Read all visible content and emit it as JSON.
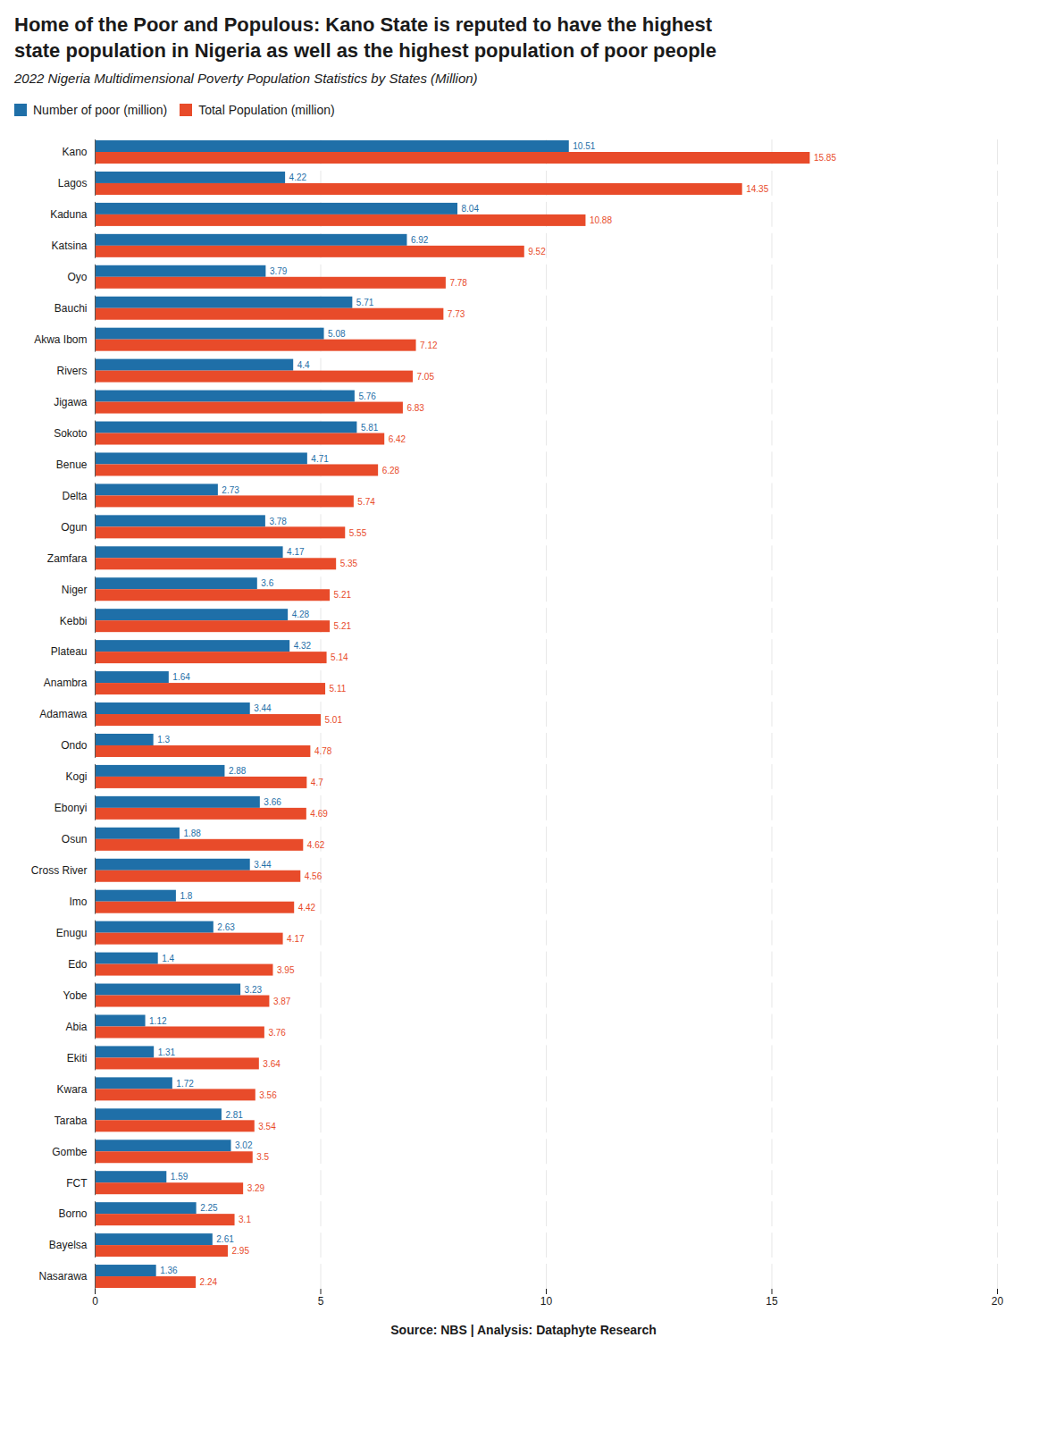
{
  "chart_data": {
    "type": "bar",
    "orientation": "horizontal",
    "title": "Home of the Poor and Populous: Kano State is reputed to have the highest\nstate population in Nigeria as well as the highest population of poor people",
    "subtitle": "2022 Nigeria Multidimensional Poverty Population Statistics by States (Million)",
    "source": "Source: NBS | Analysis: Dataphyte Research",
    "categories": [
      "Kano",
      "Lagos",
      "Kaduna",
      "Katsina",
      "Oyo",
      "Bauchi",
      "Akwa Ibom",
      "Rivers",
      "Jigawa",
      "Sokoto",
      "Benue",
      "Delta",
      "Ogun",
      "Zamfara",
      "Niger",
      "Kebbi",
      "Plateau",
      "Anambra",
      "Adamawa",
      "Ondo",
      "Kogi",
      "Ebonyi",
      "Osun",
      "Cross River",
      "Imo",
      "Enugu",
      "Edo",
      "Yobe",
      "Abia",
      "Ekiti",
      "Kwara",
      "Taraba",
      "Gombe",
      "FCT",
      "Borno",
      "Bayelsa",
      "Nasarawa"
    ],
    "series": [
      {
        "name": "Number of poor (million)",
        "color": "#1f6fa8",
        "values": [
          10.51,
          4.22,
          8.04,
          6.92,
          3.79,
          5.71,
          5.08,
          4.4,
          5.76,
          5.81,
          4.71,
          2.73,
          3.78,
          4.17,
          3.6,
          4.28,
          4.32,
          1.64,
          3.44,
          1.3,
          2.88,
          3.66,
          1.88,
          3.44,
          1.8,
          2.63,
          1.4,
          3.23,
          1.12,
          1.31,
          1.72,
          2.81,
          3.02,
          1.59,
          2.25,
          2.61,
          1.36
        ]
      },
      {
        "name": "Total Population (million)",
        "color": "#e84b2a",
        "values": [
          15.85,
          14.35,
          10.88,
          9.52,
          7.78,
          7.73,
          7.12,
          7.05,
          6.83,
          6.42,
          6.28,
          5.74,
          5.55,
          5.35,
          5.21,
          5.21,
          5.14,
          5.11,
          5.01,
          4.78,
          4.7,
          4.69,
          4.62,
          4.56,
          4.42,
          4.17,
          3.95,
          3.87,
          3.76,
          3.64,
          3.56,
          3.54,
          3.5,
          3.29,
          3.1,
          2.95,
          2.24
        ]
      }
    ],
    "xlim": [
      0,
      20
    ],
    "xticks": [
      0,
      5,
      10,
      15,
      20
    ],
    "grid": true,
    "legend": "top",
    "data_labels": true
  }
}
